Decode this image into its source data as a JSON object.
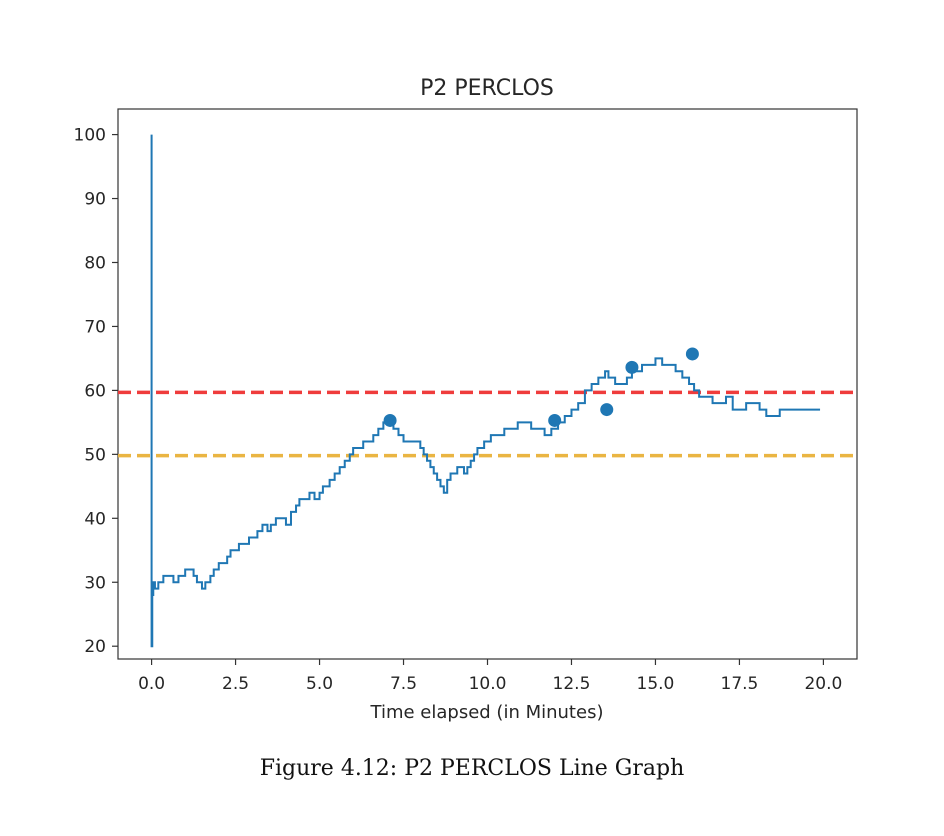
{
  "caption": "Figure 4.12: P2 PERCLOS Line Graph",
  "chart_data": {
    "type": "line",
    "title": "P2 PERCLOS",
    "xlabel": "Time elapsed (in Minutes)",
    "ylabel": "",
    "xlim": [
      -1.0,
      21.0
    ],
    "ylim": [
      18,
      104
    ],
    "xticks": [
      0.0,
      2.5,
      5.0,
      7.5,
      10.0,
      12.5,
      15.0,
      17.5,
      20.0
    ],
    "xtick_labels": [
      "0.0",
      "2.5",
      "5.0",
      "7.5",
      "10.0",
      "12.5",
      "15.0",
      "17.5",
      "20.0"
    ],
    "yticks": [
      20,
      30,
      40,
      50,
      60,
      70,
      80,
      90,
      100
    ],
    "ytick_labels": [
      "20",
      "30",
      "40",
      "50",
      "60",
      "70",
      "80",
      "90",
      "100"
    ],
    "grid": false,
    "series": [
      {
        "color": "#1f77b4",
        "line_style": "steps",
        "x": [
          0.0,
          0.0,
          0.02,
          0.05,
          0.1,
          0.2,
          0.35,
          0.5,
          0.65,
          0.8,
          0.9,
          1.0,
          1.1,
          1.25,
          1.35,
          1.5,
          1.6,
          1.75,
          1.85,
          2.0,
          2.1,
          2.25,
          2.35,
          2.5,
          2.6,
          2.75,
          2.9,
          3.0,
          3.15,
          3.3,
          3.45,
          3.55,
          3.7,
          3.85,
          4.0,
          4.15,
          4.3,
          4.4,
          4.55,
          4.7,
          4.85,
          5.0,
          5.1,
          5.3,
          5.45,
          5.6,
          5.75,
          5.9,
          6.0,
          6.15,
          6.3,
          6.45,
          6.6,
          6.75,
          6.9,
          7.05,
          7.2,
          7.35,
          7.5,
          7.6,
          7.75,
          7.9,
          8.0,
          8.1,
          8.2,
          8.3,
          8.4,
          8.5,
          8.6,
          8.7,
          8.8,
          8.9,
          9.0,
          9.1,
          9.2,
          9.3,
          9.4,
          9.5,
          9.6,
          9.7,
          9.8,
          9.9,
          10.0,
          10.1,
          10.3,
          10.5,
          10.7,
          10.9,
          11.1,
          11.3,
          11.5,
          11.7,
          11.9,
          12.1,
          12.3,
          12.5,
          12.7,
          12.9,
          13.1,
          13.3,
          13.5,
          13.6,
          13.8,
          14.0,
          14.15,
          14.3,
          14.45,
          14.6,
          14.8,
          15.0,
          15.2,
          15.4,
          15.6,
          15.8,
          16.0,
          16.15,
          16.3,
          16.5,
          16.7,
          16.9,
          17.1,
          17.3,
          17.5,
          17.7,
          17.9,
          18.1,
          18.3,
          18.5,
          18.7,
          18.9,
          19.1,
          19.3,
          19.5,
          19.7,
          19.9
        ],
        "y": [
          100,
          20,
          28,
          30,
          29,
          30,
          31,
          31,
          30,
          31,
          31,
          32,
          32,
          31,
          30,
          29,
          30,
          31,
          32,
          33,
          33,
          34,
          35,
          35,
          36,
          36,
          37,
          37,
          38,
          39,
          38,
          39,
          40,
          40,
          39,
          41,
          42,
          43,
          43,
          44,
          43,
          44,
          45,
          46,
          47,
          48,
          49,
          50,
          51,
          51,
          52,
          52,
          53,
          54,
          55,
          55,
          54,
          53,
          52,
          52,
          52,
          52,
          51,
          50,
          49,
          48,
          47,
          46,
          45,
          44,
          46,
          47,
          47,
          48,
          48,
          47,
          48,
          49,
          50,
          51,
          51,
          52,
          52,
          53,
          53,
          54,
          54,
          55,
          55,
          54,
          54,
          53,
          54,
          55,
          56,
          57,
          58,
          60,
          61,
          62,
          63,
          62,
          61,
          61,
          62,
          63,
          63,
          64,
          64,
          65,
          64,
          64,
          63,
          62,
          61,
          60,
          59,
          59,
          58,
          58,
          59,
          57,
          57,
          58,
          58,
          57,
          56,
          56,
          57,
          57,
          57,
          57,
          57,
          57,
          57
        ]
      }
    ],
    "markers": {
      "color": "#1f77b4",
      "points": [
        {
          "x": 7.1,
          "y": 55.3
        },
        {
          "x": 12.0,
          "y": 55.3
        },
        {
          "x": 13.55,
          "y": 57.0
        },
        {
          "x": 14.3,
          "y": 63.6
        },
        {
          "x": 16.1,
          "y": 65.7
        }
      ]
    },
    "reference_lines": [
      {
        "y": 59.7,
        "color": "#ef3c3c",
        "style": "dashed"
      },
      {
        "y": 49.8,
        "color": "#eab543",
        "style": "dashed"
      }
    ]
  }
}
